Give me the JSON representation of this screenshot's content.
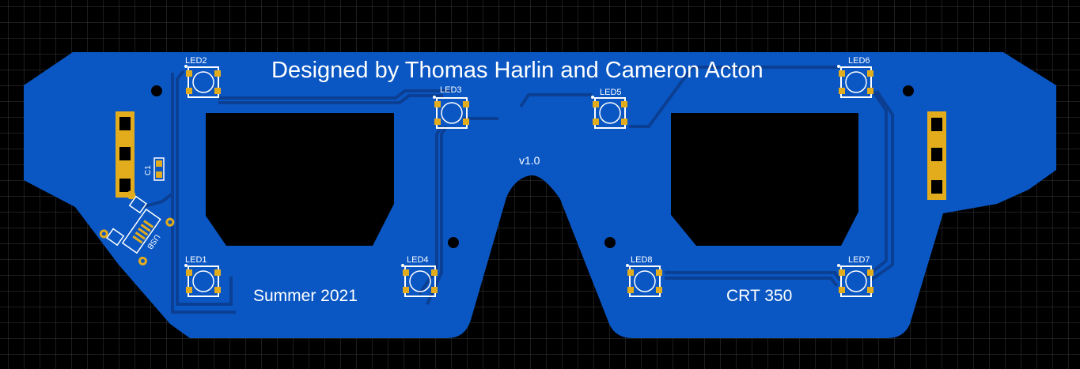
{
  "board": {
    "title_silkscreen": "Designed by Thomas Harlin and Cameron Acton",
    "left_text": "Summer 2021",
    "right_text": "CRT 350",
    "version": "v1.0"
  },
  "components": {
    "capacitor": "C1",
    "usb": "USB",
    "leds": [
      {
        "label": "LED1"
      },
      {
        "label": "LED2"
      },
      {
        "label": "LED3"
      },
      {
        "label": "LED4"
      },
      {
        "label": "LED5"
      },
      {
        "label": "LED6"
      },
      {
        "label": "LED7"
      },
      {
        "label": "LED8"
      }
    ]
  },
  "colors": {
    "background": "#000000",
    "grid": "#3a3a3a",
    "board": "#0a57c4",
    "pad": "#e2ac1c",
    "trace": "#0b3f93",
    "silkscreen": "#ffffff"
  }
}
